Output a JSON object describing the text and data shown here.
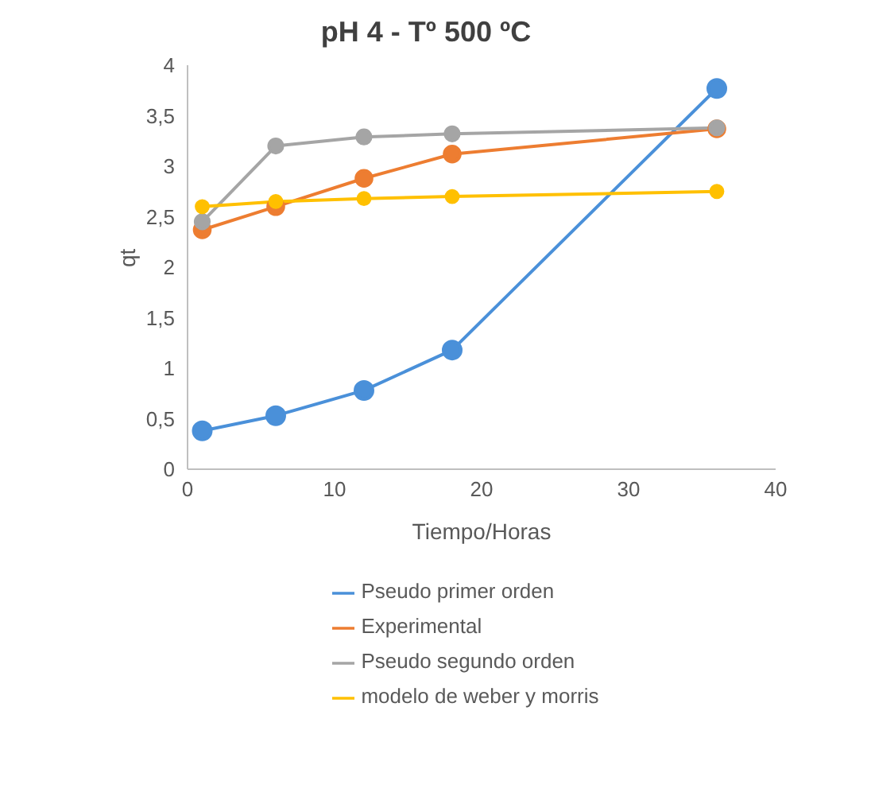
{
  "chart_data": {
    "type": "line",
    "title": "pH 4 - Tº 500 ºC",
    "xlabel": "Tiempo/Horas",
    "ylabel": "qt",
    "x": [
      1,
      6,
      12,
      18,
      36
    ],
    "series": [
      {
        "name": "Pseudo primer orden",
        "color": "#4a90d9",
        "values": [
          0.38,
          0.53,
          0.78,
          1.18,
          3.77
        ]
      },
      {
        "name": "Experimental",
        "color": "#ed7d31",
        "values": [
          2.37,
          2.6,
          2.88,
          3.12,
          3.37
        ]
      },
      {
        "name": "Pseudo segundo orden",
        "color": "#a5a5a5",
        "values": [
          2.45,
          3.2,
          3.29,
          3.32,
          3.38
        ]
      },
      {
        "name": "modelo de weber y morris",
        "color": "#ffc000",
        "values": [
          2.6,
          2.65,
          2.68,
          2.7,
          2.75
        ]
      }
    ],
    "xlim": [
      0,
      40
    ],
    "xticks": [
      0,
      10,
      20,
      30,
      40
    ],
    "ylim": [
      0,
      4
    ],
    "yticks": [
      0,
      {
        "value": 0.5,
        "label": "0,5"
      },
      1,
      {
        "value": 1.5,
        "label": "1,5"
      },
      2,
      {
        "value": 2.5,
        "label": "2,5"
      },
      3,
      {
        "value": 3.5,
        "label": "3,5"
      },
      4
    ],
    "grid": false,
    "legend": "bottom",
    "marker": "circle",
    "line_style": "solid"
  }
}
